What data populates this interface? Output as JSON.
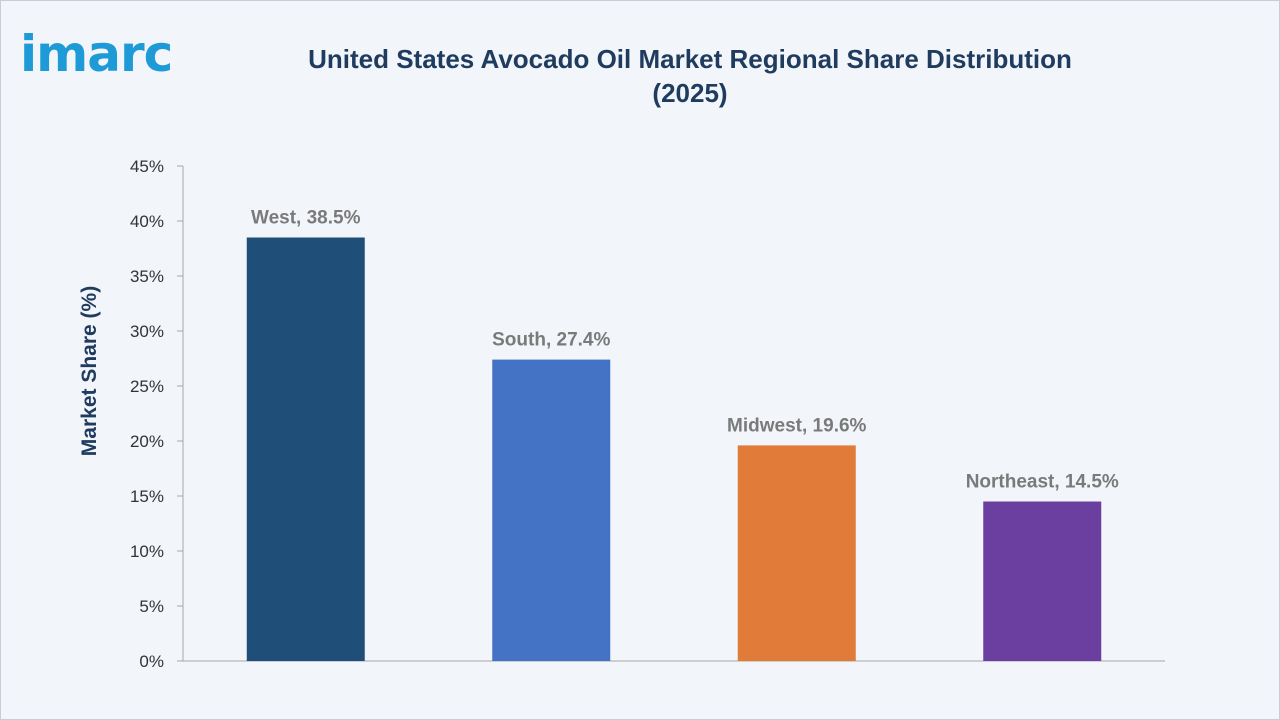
{
  "brand": {
    "logo_text": "imarc",
    "logo_color": "#1e9ad6"
  },
  "chart_data": {
    "type": "bar",
    "title": "United States Avocado Oil Market Regional Share Distribution (2025)",
    "title_lines": [
      "United States Avocado Oil Market Regional Share Distribution",
      "(2025)"
    ],
    "xlabel": "",
    "ylabel": "Market Share (%)",
    "ylim": [
      0,
      45
    ],
    "yticks": [
      0,
      5,
      10,
      15,
      20,
      25,
      30,
      35,
      40,
      45
    ],
    "ytick_labels": [
      "0%",
      "5%",
      "10%",
      "15%",
      "20%",
      "25%",
      "30%",
      "35%",
      "40%",
      "45%"
    ],
    "grid": false,
    "legend": "none",
    "categories": [
      "West",
      "South",
      "Midwest",
      "Northeast"
    ],
    "values": [
      38.5,
      27.4,
      19.6,
      14.5
    ],
    "data_labels": [
      "West, 38.5%",
      "South, 27.4%",
      "Midwest, 19.6%",
      "Northeast, 14.5%"
    ],
    "colors": [
      "#1f4e79",
      "#4472c4",
      "#e07b39",
      "#6b3fa0"
    ]
  }
}
